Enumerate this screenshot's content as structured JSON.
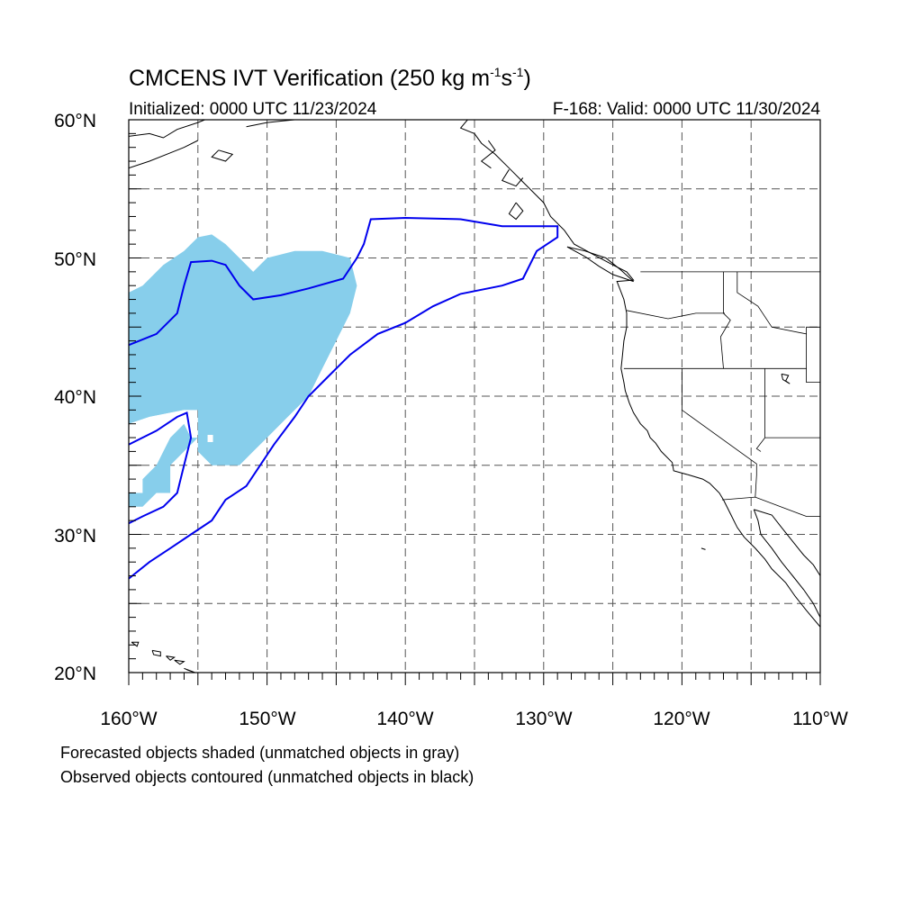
{
  "title": {
    "main": "CMCENS IVT Verification (250 kg m",
    "sup1": "-1",
    "mid": "s",
    "sup2": "-1",
    "end": ")"
  },
  "initialized": "Initialized: 0000 UTC 11/23/2024",
  "valid": "F-168: Valid: 0000 UTC 11/30/2024",
  "y_ticks": [
    "60°N",
    "50°N",
    "40°N",
    "30°N",
    "20°N"
  ],
  "x_ticks": [
    "160°W",
    "150°W",
    "140°W",
    "130°W",
    "120°W",
    "110°W"
  ],
  "notes": [
    "Forecasted objects shaded (unmatched objects in gray)",
    "Observed objects contoured (unmatched objects in black)"
  ],
  "colors": {
    "forecast_fill": "#87ceeb",
    "observed_contour": "#0000ee",
    "coast": "#000000",
    "grid": "#555555"
  },
  "chart_data": {
    "type": "map",
    "lon_range": [
      -160,
      -110
    ],
    "lat_range": [
      20,
      60
    ],
    "grid": "dashed, every 5 degrees",
    "forecast_objects": [
      {
        "kind": "shaded",
        "lon_lat": [
          [
            -160,
            38
          ],
          [
            -158.5,
            38.5
          ],
          [
            -156,
            39
          ],
          [
            -155,
            39
          ],
          [
            -155,
            37
          ],
          [
            -156,
            36
          ],
          [
            -157,
            35
          ],
          [
            -157,
            33
          ],
          [
            -158,
            33
          ],
          [
            -159,
            32
          ],
          [
            -160,
            32
          ],
          [
            -160,
            33
          ],
          [
            -159,
            33
          ],
          [
            -159,
            34
          ],
          [
            -158,
            35
          ],
          [
            -157.5,
            36
          ],
          [
            -157,
            37
          ],
          [
            -156,
            38
          ],
          [
            -155.5,
            37
          ],
          [
            -155,
            37
          ],
          [
            -155,
            36
          ],
          [
            -154,
            35
          ],
          [
            -152,
            35
          ],
          [
            -151,
            36
          ],
          [
            -150,
            37
          ],
          [
            -148.5,
            38.5
          ],
          [
            -147,
            40
          ],
          [
            -146,
            42
          ],
          [
            -145,
            44
          ],
          [
            -144,
            46
          ],
          [
            -143.5,
            48
          ],
          [
            -144,
            50
          ],
          [
            -146,
            50.5
          ],
          [
            -148,
            50.5
          ],
          [
            -150,
            50
          ],
          [
            -151,
            49
          ],
          [
            -152,
            50
          ],
          [
            -153,
            51
          ],
          [
            -154,
            51.7
          ],
          [
            -155,
            51.5
          ],
          [
            -156,
            50.5
          ],
          [
            -157.5,
            49.5
          ],
          [
            -159,
            48
          ],
          [
            -160,
            47.5
          ]
        ]
      }
    ],
    "observed_objects": [
      {
        "kind": "contour",
        "lon_lat": [
          [
            -160,
            43.7
          ],
          [
            -158,
            44.5
          ],
          [
            -156.5,
            46
          ],
          [
            -156,
            48
          ],
          [
            -155.5,
            49.7
          ],
          [
            -154,
            49.8
          ],
          [
            -153,
            49.5
          ],
          [
            -152,
            48
          ],
          [
            -151,
            47
          ],
          [
            -149,
            47.3
          ],
          [
            -147,
            47.8
          ],
          [
            -144.5,
            48.5
          ],
          [
            -143.5,
            50
          ],
          [
            -143,
            51
          ],
          [
            -142.5,
            52.8
          ],
          [
            -140,
            52.9
          ],
          [
            -136,
            52.8
          ],
          [
            -133,
            52.3
          ],
          [
            -129,
            52.3
          ],
          [
            -129,
            51.5
          ],
          [
            -130.5,
            50.5
          ],
          [
            -131.5,
            48.5
          ],
          [
            -133,
            48
          ],
          [
            -136,
            47.4
          ],
          [
            -138,
            46.5
          ],
          [
            -140,
            45.3
          ],
          [
            -142,
            44.5
          ],
          [
            -144,
            43
          ],
          [
            -145.5,
            41.5
          ],
          [
            -147,
            40
          ],
          [
            -148,
            38.5
          ],
          [
            -149.5,
            36.5
          ],
          [
            -150.5,
            35
          ],
          [
            -151.5,
            33.5
          ],
          [
            -153,
            32.5
          ],
          [
            -154,
            31
          ],
          [
            -155.5,
            30
          ],
          [
            -157,
            29
          ],
          [
            -158.5,
            28
          ],
          [
            -160,
            26.8
          ]
        ]
      },
      {
        "kind": "contour",
        "lon_lat": [
          [
            -160,
            36.5
          ],
          [
            -158,
            37.5
          ],
          [
            -156.5,
            38.5
          ],
          [
            -155.8,
            38.8
          ],
          [
            -155.5,
            37
          ],
          [
            -156,
            35
          ],
          [
            -156.5,
            33
          ],
          [
            -157.5,
            32
          ],
          [
            -159,
            31.3
          ],
          [
            -160,
            30.8
          ]
        ]
      }
    ]
  }
}
